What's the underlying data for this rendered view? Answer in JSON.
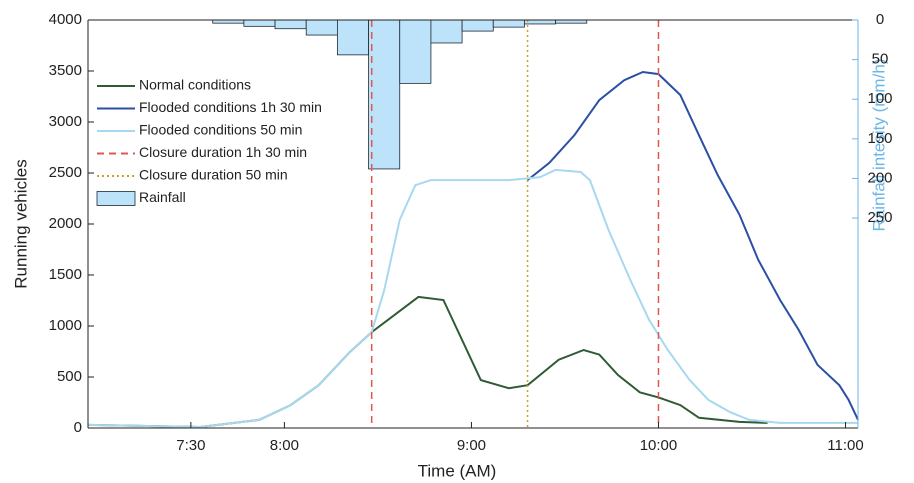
{
  "chart_data": {
    "type": "line",
    "x_label": "Time (AM)",
    "y_label": "Running vehicles",
    "y2_label": "Rainfall intesity (mm/h)",
    "xlim": [
      417,
      664
    ],
    "xticks": [
      {
        "value": 450,
        "label": "7:30"
      },
      {
        "value": 480,
        "label": "8:00"
      },
      {
        "value": 540,
        "label": "9:00"
      },
      {
        "value": 600,
        "label": "10:00"
      },
      {
        "value": 660,
        "label": "11:00"
      }
    ],
    "ylim": [
      0,
      4000
    ],
    "yticks": [
      0,
      500,
      1000,
      1500,
      2000,
      2500,
      3000,
      3500,
      4000
    ],
    "y2lim": [
      515,
      0
    ],
    "y2ticks": [
      0,
      50,
      100,
      150,
      200,
      250
    ],
    "y2_color": "#6cb6e8",
    "legend": "upper left",
    "series": [
      {
        "name": "Normal conditions",
        "type": "line",
        "color": "#2f5a35",
        "x": [
          417,
          453,
          472,
          482,
          491,
          501,
          508,
          523,
          531,
          543,
          552,
          558,
          568,
          576,
          581,
          587,
          594,
          600,
          607,
          613,
          626,
          635
        ],
        "values": [
          30,
          10,
          80,
          225,
          420,
          745,
          940,
          1285,
          1255,
          470,
          390,
          420,
          670,
          765,
          720,
          520,
          350,
          300,
          225,
          100,
          60,
          50
        ]
      },
      {
        "name": "Flooded conditions 1h 30 min",
        "type": "line",
        "color": "#2b4fa3",
        "x": [
          558,
          565,
          573,
          581,
          589,
          595,
          600,
          607,
          613,
          619,
          626,
          632,
          639,
          645,
          651,
          658,
          661,
          664
        ],
        "values": [
          2430,
          2600,
          2870,
          3215,
          3410,
          3490,
          3470,
          3265,
          2870,
          2480,
          2090,
          1650,
          1255,
          960,
          620,
          420,
          275,
          80
        ]
      },
      {
        "name": "Flooded conditions 50 min",
        "type": "line",
        "color": "#a8d8f0",
        "x": [
          417,
          453,
          472,
          482,
          491,
          501,
          508,
          512,
          517,
          522,
          527,
          543,
          552,
          562,
          567,
          575,
          578,
          584,
          591,
          597,
          603,
          610,
          616,
          623,
          629,
          639,
          664
        ],
        "values": [
          30,
          10,
          80,
          225,
          420,
          745,
          940,
          1350,
          2040,
          2380,
          2430,
          2430,
          2430,
          2460,
          2530,
          2510,
          2430,
          1940,
          1450,
          1060,
          765,
          470,
          275,
          155,
          80,
          50,
          50
        ]
      },
      {
        "name": "Closure duration 1h 30 min",
        "type": "vline",
        "color": "#e0584c",
        "dash": "7,5",
        "x": [
          508,
          600
        ]
      },
      {
        "name": "Closure duration 50 min",
        "type": "vline",
        "color": "#c9a227",
        "dash": "2,3",
        "x": [
          558
        ]
      },
      {
        "name": "Rainfall",
        "type": "histogram",
        "axis": "y2",
        "color": "#bde3fa",
        "bins": [
          457,
          467,
          477,
          487,
          497,
          507,
          517,
          527,
          537,
          547,
          557,
          567,
          577
        ],
        "values": [
          4,
          8,
          11,
          19,
          44,
          188,
          80,
          29,
          14,
          9,
          5,
          4
        ]
      }
    ]
  }
}
